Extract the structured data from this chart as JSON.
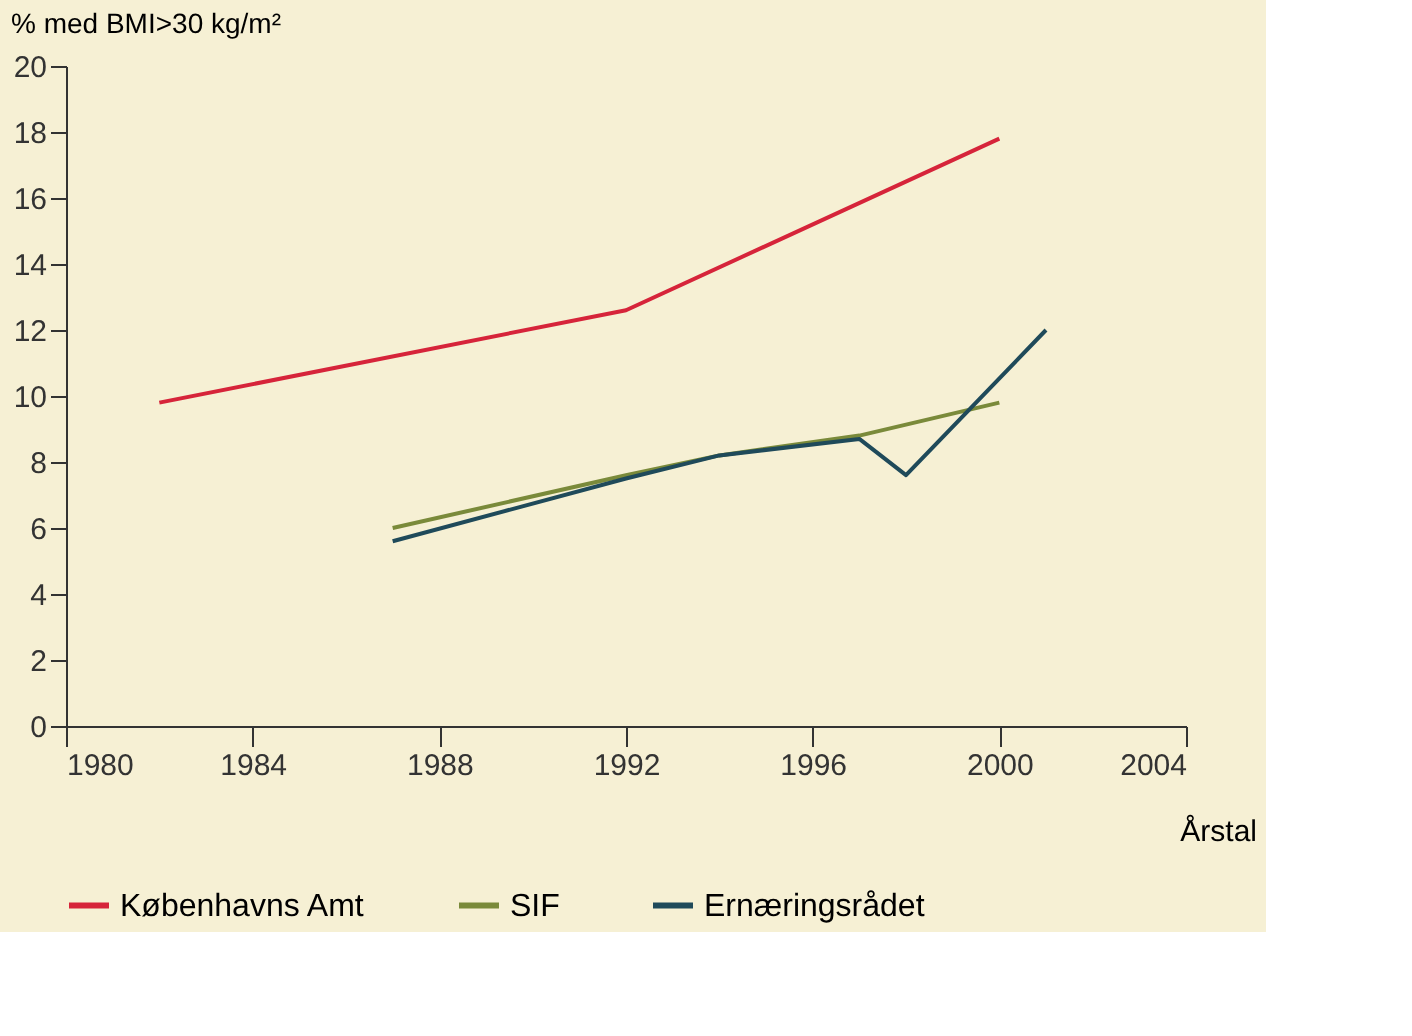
{
  "chart_data": {
    "type": "line",
    "ylabel": "% med BMI>30 kg/m²",
    "xlabel": "Årstal",
    "xlim": [
      1980,
      2004
    ],
    "xticks": [
      1980,
      1984,
      1988,
      1992,
      1996,
      2000,
      2004
    ],
    "ylim": [
      0,
      20
    ],
    "yticks": [
      0,
      2,
      4,
      6,
      8,
      10,
      12,
      14,
      16,
      18,
      20
    ],
    "grid": false,
    "legend": "bottom",
    "marker": "none",
    "line_style": "solid",
    "series": [
      {
        "name": "Københavns Amt",
        "color": "#d6243a",
        "x": [
          1982,
          1992,
          2000
        ],
        "values": [
          9.8,
          12.6,
          17.8
        ]
      },
      {
        "name": "SIF",
        "color": "#7a8a3a",
        "x": [
          1987,
          1992,
          1994,
          1997,
          2000
        ],
        "values": [
          6.0,
          7.6,
          8.2,
          8.8,
          9.8
        ]
      },
      {
        "name": "Ernæringsrådet",
        "color": "#1f4a5a",
        "x": [
          1987,
          1992,
          1994,
          1997,
          1998,
          2001
        ],
        "values": [
          5.6,
          7.5,
          8.2,
          8.7,
          7.6,
          12.0
        ]
      }
    ]
  }
}
